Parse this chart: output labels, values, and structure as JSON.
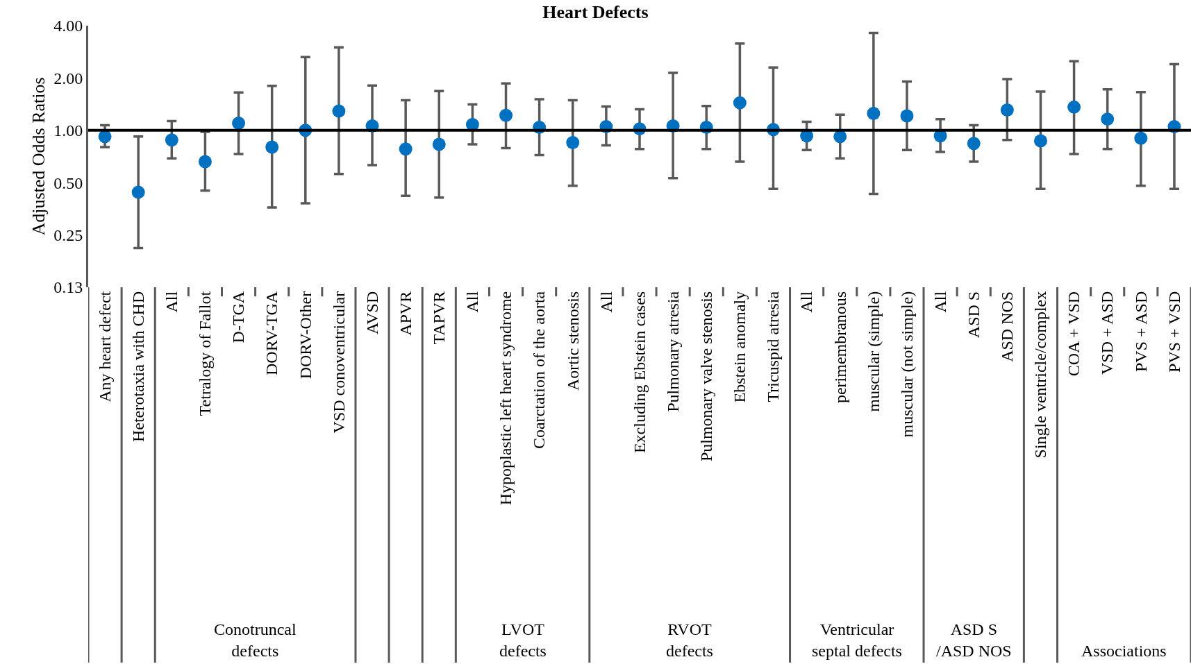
{
  "chart_data": {
    "type": "scatter",
    "title": "Heart Defects",
    "ylabel": "Adjusted Odds Ratios",
    "categories": [
      "Any heart defect",
      "Heterotaxia with CHD",
      "All",
      "Tetralogy of Fallot",
      "D-TGA",
      "DORV-TGA",
      "DORV-Other",
      "VSD conoventricular",
      "AVSD",
      "APVR",
      "TAPVR",
      "All",
      "Hypoplastic left heart syndrome",
      "Coarctation of the aorta",
      "Aortic stenosis",
      "All",
      "Excluding Ebstein cases",
      "Pulmonary atresia",
      "Pulmonary valve stenosis",
      "Ebstein anomaly",
      "Tricuspid atresia",
      "All",
      "perimembranous",
      "muscular (simple)",
      "muscular (not simple)",
      "All",
      "ASD S",
      "ASD NOS",
      "Single ventricle/complex",
      "COA + VSD",
      "VSD + ASD",
      "PVS + ASD",
      "PVS + VSD"
    ],
    "series": [
      {
        "color": "#0070c0",
        "values": [
          0.92,
          0.44,
          0.88,
          0.66,
          1.1,
          0.8,
          1.0,
          1.29,
          1.06,
          0.78,
          0.83,
          1.08,
          1.22,
          1.04,
          0.85,
          1.05,
          1.02,
          1.06,
          1.04,
          1.44,
          1.01,
          0.93,
          0.92,
          1.25,
          1.21,
          0.93,
          0.84,
          1.31,
          0.87,
          1.36,
          1.16,
          0.9,
          1.05
        ],
        "errors": [
          [
            0.8,
            1.07
          ],
          [
            0.21,
            0.92
          ],
          [
            0.69,
            1.13
          ],
          [
            0.45,
            0.98
          ],
          [
            0.73,
            1.65
          ],
          [
            0.36,
            1.8
          ],
          [
            0.38,
            2.64
          ],
          [
            0.56,
            3.0
          ],
          [
            0.63,
            1.81
          ],
          [
            0.42,
            1.49
          ],
          [
            0.41,
            1.68
          ],
          [
            0.83,
            1.41
          ],
          [
            0.79,
            1.86
          ],
          [
            0.72,
            1.51
          ],
          [
            0.48,
            1.49
          ],
          [
            0.82,
            1.37
          ],
          [
            0.78,
            1.32
          ],
          [
            0.53,
            2.14
          ],
          [
            0.78,
            1.38
          ],
          [
            0.66,
            3.16
          ],
          [
            0.46,
            2.3
          ],
          [
            0.77,
            1.12
          ],
          [
            0.69,
            1.23
          ],
          [
            0.43,
            3.63
          ],
          [
            0.77,
            1.91
          ],
          [
            0.75,
            1.16
          ],
          [
            0.66,
            1.07
          ],
          [
            0.88,
            1.97
          ],
          [
            0.46,
            1.67
          ],
          [
            0.73,
            2.5
          ],
          [
            0.78,
            1.72
          ],
          [
            0.48,
            1.66
          ],
          [
            0.46,
            2.4
          ]
        ]
      }
    ],
    "annotations": [
      "Conotruncal\ndefects",
      "LVOT\ndefects",
      "RVOT\ndefects",
      "Ventricular\nseptal defects",
      "ASD S\n/ASD NOS",
      "Associations"
    ],
    "ref_lines": [
      {
        "axis": "y",
        "value": 1,
        "color": "#000000"
      }
    ],
    "log": "y",
    "ylim": [
      0.125,
      4
    ],
    "yticks": [
      {
        "value": 0.125,
        "label": "0.13"
      },
      {
        "value": 0.25,
        "label": "0.25"
      },
      {
        "value": 0.5,
        "label": "0.50"
      },
      {
        "value": 1,
        "label": "1.00"
      },
      {
        "value": 2,
        "label": "2.00"
      },
      {
        "value": 4,
        "label": "4.00"
      }
    ],
    "marker": "circle"
  }
}
